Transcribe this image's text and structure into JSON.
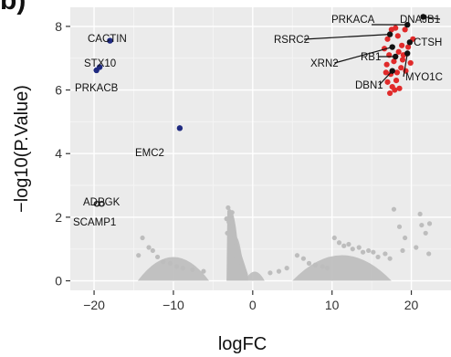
{
  "panel_letter": "b)",
  "chart_data": {
    "type": "scatter",
    "xlabel": "logFC",
    "ylabel": "−log10(P.Value)",
    "xlim": [
      -23,
      25
    ],
    "ylim": [
      -0.3,
      8.6
    ],
    "x_ticks": [
      -20,
      -10,
      0,
      10,
      20
    ],
    "x_tick_labels": [
      "−20",
      "−10",
      "0",
      "10",
      "20"
    ],
    "y_ticks": [
      0,
      2,
      4,
      6,
      8
    ],
    "y_tick_labels": [
      "0",
      "2",
      "4",
      "6",
      "8"
    ],
    "grid": true,
    "colors": {
      "background": "#ebebeb",
      "grid_major": "#ffffff",
      "grid_minor": "#f4f4f4",
      "not_significant": "#bdbdbd",
      "down_regulated": "#1f2a80",
      "up_regulated": "#e02a2a",
      "labeled_point": "#111111",
      "unlabeled_down": "#222222"
    },
    "labeled_points": [
      {
        "label": "CACTIN",
        "x": -18.0,
        "y": 7.55,
        "group": "down"
      },
      {
        "label": "STX10",
        "x": -19.3,
        "y": 6.72,
        "group": "down"
      },
      {
        "label": "PRKACB",
        "x": -19.7,
        "y": 6.62,
        "group": "down"
      },
      {
        "label": "EMC2",
        "x": -9.2,
        "y": 4.8,
        "group": "down"
      },
      {
        "label": "ADPGK",
        "x": -19.1,
        "y": 2.42,
        "group": "down"
      },
      {
        "label": "SCAMP1",
        "x": -19.7,
        "y": 2.42,
        "group": "down"
      },
      {
        "label": "PRKACA",
        "x": 19.5,
        "y": 8.05,
        "group": "up"
      },
      {
        "label": "DNAJB1",
        "x": 21.5,
        "y": 8.3,
        "group": "up"
      },
      {
        "label": "RSRC2",
        "x": 17.3,
        "y": 7.75,
        "group": "up"
      },
      {
        "label": "CTSH",
        "x": 19.8,
        "y": 7.5,
        "group": "up"
      },
      {
        "label": "XRN2",
        "x": 17.6,
        "y": 7.35,
        "group": "up"
      },
      {
        "label": "RB1",
        "x": 18.0,
        "y": 7.05,
        "group": "up"
      },
      {
        "label": "MYO1C",
        "x": 19.5,
        "y": 7.15,
        "group": "up"
      },
      {
        "label": "DBN1",
        "x": 17.6,
        "y": 6.6,
        "group": "up"
      }
    ],
    "up_cluster_points": [
      [
        17.0,
        7.6
      ],
      [
        17.5,
        7.9
      ],
      [
        18.3,
        7.7
      ],
      [
        18.8,
        7.4
      ],
      [
        19.2,
        7.9
      ],
      [
        17.2,
        7.1
      ],
      [
        17.8,
        6.9
      ],
      [
        18.4,
        7.2
      ],
      [
        18.9,
        6.95
      ],
      [
        19.6,
        7.35
      ],
      [
        16.9,
        6.8
      ],
      [
        17.4,
        6.5
      ],
      [
        18.2,
        6.55
      ],
      [
        18.7,
        6.7
      ],
      [
        19.3,
        6.6
      ],
      [
        17.0,
        6.25
      ],
      [
        17.6,
        6.1
      ],
      [
        18.1,
        6.3
      ],
      [
        17.3,
        5.9
      ],
      [
        18.5,
        6.05
      ],
      [
        19.9,
        6.85
      ],
      [
        20.2,
        7.6
      ],
      [
        16.6,
        7.3
      ],
      [
        18.0,
        7.95
      ],
      [
        19.0,
        7.1
      ],
      [
        17.9,
        6.0
      ],
      [
        16.8,
        6.55
      ]
    ],
    "down_extra_points": [
      [
        -19.6,
        2.42
      ],
      [
        -19.0,
        2.42
      ]
    ],
    "grey_cloud_points": [
      [
        -3.1,
        2.3
      ],
      [
        -2.9,
        2.05
      ],
      [
        -2.6,
        2.15
      ],
      [
        -3.3,
        1.95
      ],
      [
        -3.0,
        1.85
      ],
      [
        -2.5,
        1.6
      ],
      [
        -2.8,
        1.35
      ],
      [
        -3.2,
        1.5
      ],
      [
        -2.6,
        1.1
      ],
      [
        -2.4,
        0.95
      ],
      [
        -2.1,
        0.75
      ],
      [
        -1.9,
        0.55
      ],
      [
        -1.6,
        0.4
      ],
      [
        -1.3,
        0.3
      ],
      [
        -1.0,
        0.25
      ],
      [
        -13.9,
        1.35
      ],
      [
        -13.1,
        1.05
      ],
      [
        -12.6,
        0.95
      ],
      [
        -14.4,
        0.8
      ],
      [
        -12.0,
        0.75
      ],
      [
        -11.3,
        0.6
      ],
      [
        -10.4,
        0.55
      ],
      [
        -9.6,
        0.45
      ],
      [
        -8.8,
        0.4
      ],
      [
        -7.6,
        0.35
      ],
      [
        -6.2,
        0.3
      ],
      [
        10.3,
        1.35
      ],
      [
        10.9,
        1.2
      ],
      [
        11.5,
        1.1
      ],
      [
        12.1,
        1.15
      ],
      [
        12.6,
        1.0
      ],
      [
        13.4,
        1.05
      ],
      [
        13.9,
        0.9
      ],
      [
        14.6,
        0.95
      ],
      [
        15.2,
        0.9
      ],
      [
        15.8,
        0.75
      ],
      [
        16.7,
        0.85
      ],
      [
        17.3,
        0.7
      ],
      [
        5.6,
        0.8
      ],
      [
        6.4,
        0.7
      ],
      [
        7.1,
        0.55
      ],
      [
        7.9,
        0.5
      ],
      [
        8.8,
        0.45
      ],
      [
        9.4,
        0.4
      ],
      [
        4.3,
        0.4
      ],
      [
        3.3,
        0.3
      ],
      [
        2.2,
        0.25
      ],
      [
        18.5,
        1.7
      ],
      [
        19.2,
        1.35
      ],
      [
        17.8,
        2.25
      ],
      [
        21.3,
        1.75
      ],
      [
        22.3,
        1.8
      ],
      [
        20.6,
        1.05
      ],
      [
        21.8,
        1.5
      ],
      [
        18.9,
        0.95
      ],
      [
        21.1,
        2.1
      ],
      [
        22.2,
        0.85
      ]
    ],
    "dense_bands": [
      {
        "x_min": -3.2,
        "x_max": -1.0,
        "y_max": 2.4
      },
      {
        "x_min": -1.0,
        "x_max": 1.5,
        "y_max": 0.5
      },
      {
        "x_min": -14.5,
        "x_max": -5.5,
        "y_max": 1.3
      },
      {
        "x_min": 5.0,
        "x_max": 17.5,
        "y_max": 1.4
      }
    ]
  }
}
